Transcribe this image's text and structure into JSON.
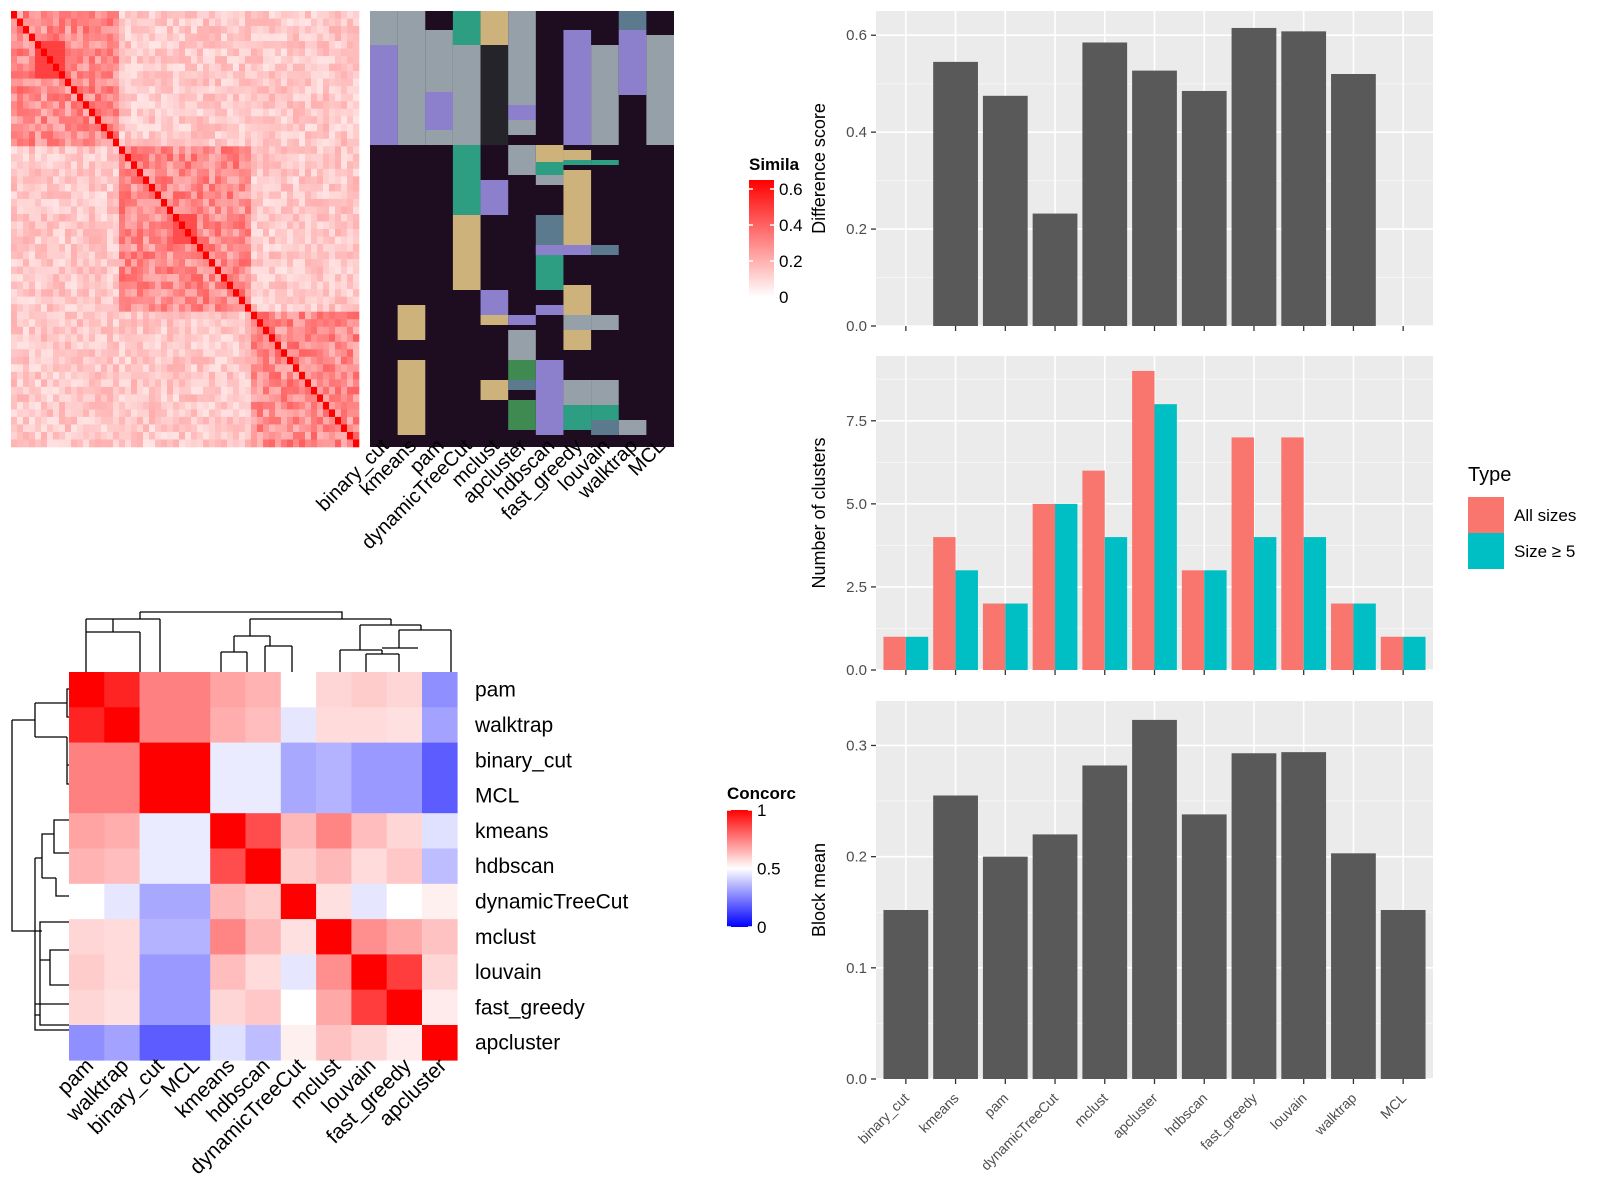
{
  "colors": {
    "panel_bg": "#EBEBEB",
    "grid_major": "#FFFFFF",
    "bar_dark": "#595959",
    "all_sizes": "#F8766D",
    "size_ge5": "#00BFC4",
    "heat_low": "#FFFFFF",
    "heat_high": "#FF0000",
    "conc_low": "#0000FF",
    "conc_mid": "#FFFFFF",
    "conc_high": "#FF0000",
    "membership_bg": "#1E0D20",
    "cluster_palette": [
      "#96A0A8",
      "#8C7FCC",
      "#2E9E82",
      "#CDB27C",
      "#25242A",
      "#5C7A8E",
      "#3F8A50",
      "#8E9CA8"
    ]
  },
  "methods": [
    "binary_cut",
    "kmeans",
    "pam",
    "dynamicTreeCut",
    "mclust",
    "apcluster",
    "hdbscan",
    "fast_greedy",
    "louvain",
    "walktrap",
    "MCL"
  ],
  "similarity_heatmap": {
    "legend_title": "Simila",
    "legend_ticks": [
      "0.6",
      "0.4",
      "0.2",
      "0"
    ]
  },
  "concordance_heatmap": {
    "legend_title": "Concorc",
    "legend_ticks": [
      "1",
      "0.5",
      "0"
    ],
    "order": [
      "pam",
      "walktrap",
      "binary_cut",
      "MCL",
      "kmeans",
      "hdbscan",
      "dynamicTreeCut",
      "mclust",
      "louvain",
      "fast_greedy",
      "apcluster"
    ]
  },
  "legend": {
    "title": "Type",
    "items": [
      "All sizes",
      "Size ≥ 5"
    ]
  },
  "chart_data": [
    {
      "type": "bar",
      "ylabel": "Difference score",
      "ylim": [
        0,
        0.65
      ],
      "yticks": [
        "0.0",
        "0.2",
        "0.4",
        "0.6"
      ],
      "categories": [
        "binary_cut",
        "kmeans",
        "pam",
        "dynamicTreeCut",
        "mclust",
        "apcluster",
        "hdbscan",
        "fast_greedy",
        "louvain",
        "walktrap",
        "MCL"
      ],
      "values": [
        0,
        0.545,
        0.475,
        0.232,
        0.585,
        0.527,
        0.485,
        0.615,
        0.608,
        0.52,
        0
      ]
    },
    {
      "type": "bar",
      "ylabel": "Number of clusters",
      "ylim": [
        0,
        9.45
      ],
      "yticks": [
        "0.0",
        "2.5",
        "5.0",
        "7.5"
      ],
      "categories": [
        "binary_cut",
        "kmeans",
        "pam",
        "dynamicTreeCut",
        "mclust",
        "apcluster",
        "hdbscan",
        "fast_greedy",
        "louvain",
        "walktrap",
        "MCL"
      ],
      "series": [
        {
          "name": "All sizes",
          "values": [
            1,
            4,
            2,
            5,
            6,
            9,
            3,
            7,
            7,
            2,
            1
          ]
        },
        {
          "name": "Size ≥ 5",
          "values": [
            1,
            3,
            2,
            5,
            4,
            8,
            3,
            4,
            4,
            2,
            1
          ]
        }
      ]
    },
    {
      "type": "bar",
      "ylabel": "Block mean",
      "ylim": [
        0,
        0.34
      ],
      "yticks": [
        "0.0",
        "0.1",
        "0.2",
        "0.3"
      ],
      "xlabels": [
        "binary_cut",
        "kmeans",
        "pam",
        "dynamicTreeCut",
        "mclust",
        "apcluster",
        "hdbscan",
        "fast_greedy",
        "louvain",
        "walktrap",
        "MCL"
      ],
      "categories": [
        "binary_cut",
        "kmeans",
        "pam",
        "dynamicTreeCut",
        "mclust",
        "apcluster",
        "hdbscan",
        "fast_greedy",
        "louvain",
        "walktrap",
        "MCL"
      ],
      "values": [
        0.152,
        0.255,
        0.2,
        0.22,
        0.282,
        0.323,
        0.238,
        0.293,
        0.294,
        0.203,
        0.152
      ]
    },
    {
      "type": "heatmap",
      "rows": [
        "pam",
        "walktrap",
        "binary_cut",
        "MCL",
        "kmeans",
        "hdbscan",
        "dynamicTreeCut",
        "mclust",
        "louvain",
        "fast_greedy",
        "apcluster"
      ],
      "cols": [
        "pam",
        "walktrap",
        "binary_cut",
        "MCL",
        "kmeans",
        "hdbscan",
        "dynamicTreeCut",
        "mclust",
        "louvain",
        "fast_greedy",
        "apcluster"
      ],
      "range": [
        0,
        1
      ],
      "values": [
        [
          1.0,
          0.93,
          0.75,
          0.75,
          0.68,
          0.65,
          0.5,
          0.58,
          0.6,
          0.58,
          0.28
        ],
        [
          0.93,
          1.0,
          0.75,
          0.75,
          0.66,
          0.63,
          0.45,
          0.57,
          0.57,
          0.56,
          0.32
        ],
        [
          0.75,
          0.75,
          1.0,
          1.0,
          0.46,
          0.46,
          0.33,
          0.35,
          0.3,
          0.3,
          0.18
        ],
        [
          0.75,
          0.75,
          1.0,
          1.0,
          0.46,
          0.46,
          0.33,
          0.35,
          0.3,
          0.3,
          0.18
        ],
        [
          0.68,
          0.66,
          0.46,
          0.46,
          1.0,
          0.85,
          0.64,
          0.74,
          0.63,
          0.58,
          0.44
        ],
        [
          0.65,
          0.63,
          0.46,
          0.46,
          0.85,
          1.0,
          0.6,
          0.64,
          0.57,
          0.61,
          0.37
        ],
        [
          0.5,
          0.45,
          0.33,
          0.33,
          0.64,
          0.6,
          1.0,
          0.56,
          0.45,
          0.5,
          0.53
        ],
        [
          0.58,
          0.57,
          0.35,
          0.35,
          0.74,
          0.64,
          0.56,
          1.0,
          0.72,
          0.67,
          0.62
        ],
        [
          0.6,
          0.57,
          0.3,
          0.3,
          0.63,
          0.57,
          0.45,
          0.72,
          1.0,
          0.88,
          0.58
        ],
        [
          0.58,
          0.56,
          0.3,
          0.3,
          0.58,
          0.61,
          0.5,
          0.67,
          0.88,
          1.0,
          0.54
        ],
        [
          0.28,
          0.32,
          0.18,
          0.18,
          0.44,
          0.37,
          0.53,
          0.62,
          0.58,
          0.54,
          1.0
        ]
      ]
    }
  ]
}
